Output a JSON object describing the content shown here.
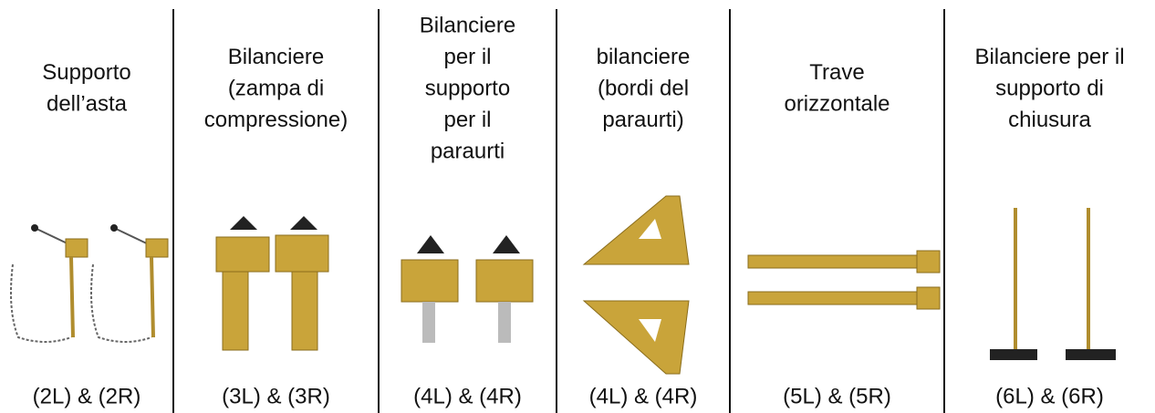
{
  "columns": [
    {
      "title_lines": [
        "Supporto",
        "dell’asta"
      ],
      "label": "(2L) & (2R)"
    },
    {
      "title_lines": [
        "Bilanciere",
        "(zampa di",
        "compressione)"
      ],
      "label": "(3L) & (3R)"
    },
    {
      "title_lines": [
        "Bilanciere",
        "per il",
        "supporto",
        "per il",
        "paraurti"
      ],
      "label": "(4L) & (4R)"
    },
    {
      "title_lines": [
        "bilanciere",
        "(bordi del",
        "paraurti)"
      ],
      "label": "(4L) & (4R)"
    },
    {
      "title_lines": [
        "Trave",
        "orizzontale"
      ],
      "label": "(5L) & (5R)"
    },
    {
      "title_lines": [
        "Bilanciere per il",
        "supporto di",
        "chiusura"
      ],
      "label": "(6L) & (6R)"
    }
  ]
}
